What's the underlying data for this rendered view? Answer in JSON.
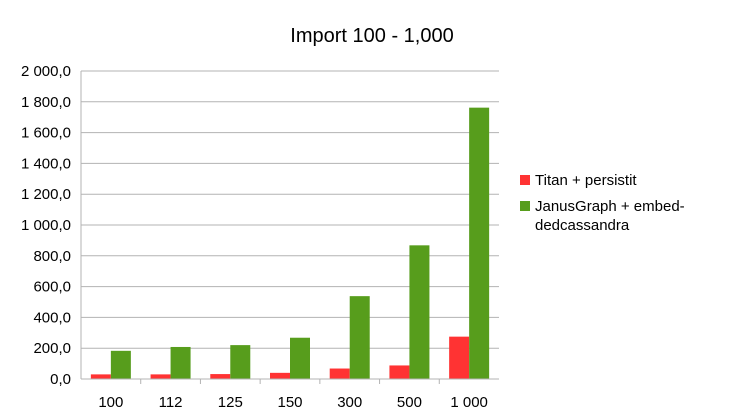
{
  "chart_data": {
    "type": "bar",
    "title": "Import 100 - 1,000",
    "xlabel": "",
    "ylabel": "",
    "categories": [
      "100",
      "112",
      "125",
      "150",
      "300",
      "500",
      "1 000"
    ],
    "ylim": [
      0,
      2000
    ],
    "y_ticks": [
      "0,0",
      "200,0",
      "400,0",
      "600,0",
      "800,0",
      "1 000,0",
      "1 200,0",
      "1 400,0",
      "1 600,0",
      "1 800,0",
      "2 000,0"
    ],
    "grid": true,
    "legend_position": "right",
    "series": [
      {
        "name": "Titan + persistit",
        "color": "#ff3333",
        "values": [
          30,
          30,
          32,
          40,
          68,
          88,
          275
        ]
      },
      {
        "name": "JanusGraph + embed-dedcassandra",
        "color": "#579d1c",
        "legend_lines": [
          "JanusGraph + embed-",
          "dedcassandra"
        ],
        "values": [
          183,
          208,
          220,
          268,
          538,
          868,
          1762
        ]
      }
    ]
  }
}
